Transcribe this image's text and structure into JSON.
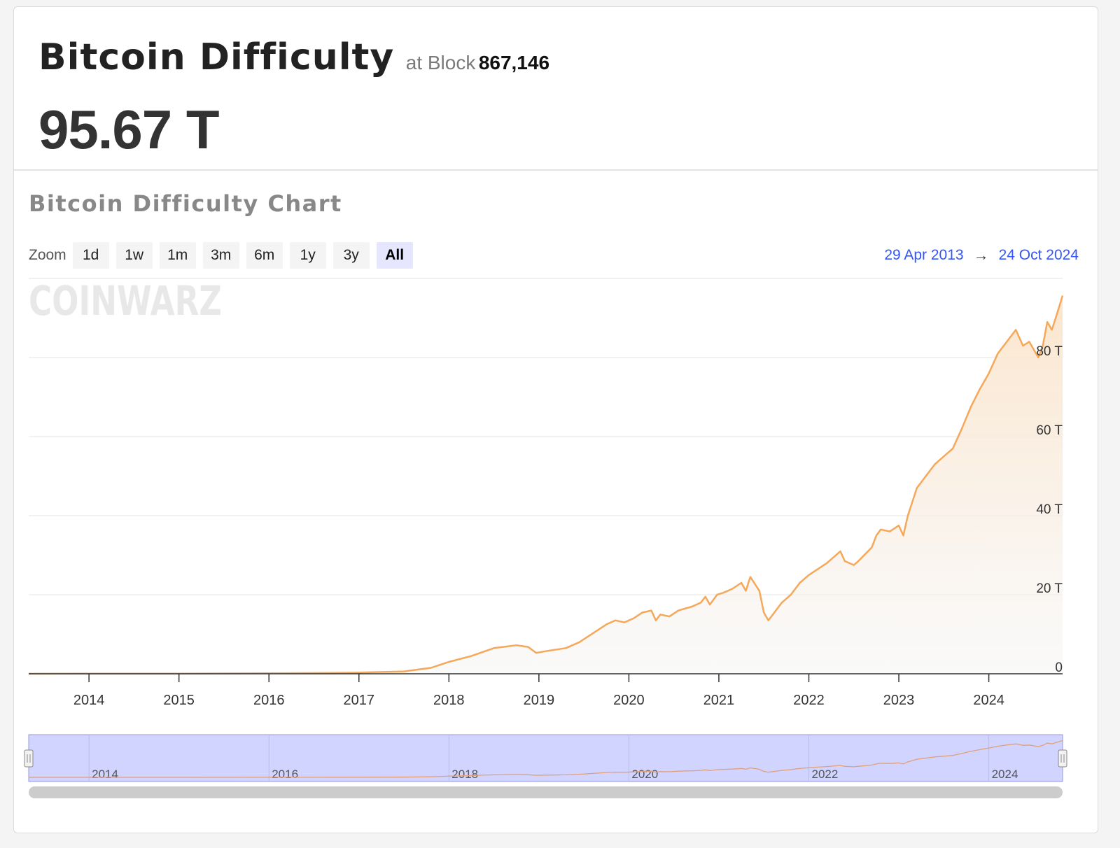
{
  "header": {
    "title": "Bitcoin Difficulty",
    "at_block_label": "at Block",
    "block_number": "867,146",
    "value": "95.67 T"
  },
  "chart_section": {
    "title": "Bitcoin Difficulty Chart",
    "zoom_label": "Zoom",
    "zoom_buttons": [
      "1d",
      "1w",
      "1m",
      "3m",
      "6m",
      "1y",
      "3y",
      "All"
    ],
    "active_zoom": "All",
    "range_from": "29 Apr 2013",
    "range_arrow": "→",
    "range_to": "24 Oct 2024",
    "watermark": "COINWARZ"
  },
  "colors": {
    "line": "#f5a85a",
    "navigator_fill": "#d0d4ff",
    "date_link": "#3355ff"
  },
  "chart_data": {
    "type": "area",
    "ylabel": "",
    "y_unit": "T",
    "ylim": [
      0,
      100
    ],
    "y_ticks": [
      "0",
      "20 T",
      "40 T",
      "60 T",
      "80 T"
    ],
    "x_range": [
      2013.33,
      2024.82
    ],
    "x_ticks": [
      "2014",
      "2015",
      "2016",
      "2017",
      "2018",
      "2019",
      "2020",
      "2021",
      "2022",
      "2023",
      "2024"
    ],
    "navigator_ticks": [
      "2014",
      "2016",
      "2018",
      "2020",
      "2022",
      "2024"
    ],
    "series": [
      {
        "x": [
          2013.33,
          2014.0,
          2015.0,
          2016.0,
          2016.5,
          2017.0,
          2017.5,
          2017.8,
          2018.0,
          2018.25,
          2018.5,
          2018.75,
          2018.88,
          2018.97,
          2019.1,
          2019.3,
          2019.45,
          2019.55,
          2019.65,
          2019.75,
          2019.85,
          2019.95,
          2020.05,
          2020.15,
          2020.25,
          2020.3,
          2020.35,
          2020.45,
          2020.55,
          2020.7,
          2020.8,
          2020.85,
          2020.9,
          2020.98,
          2021.05,
          2021.15,
          2021.25,
          2021.3,
          2021.35,
          2021.45,
          2021.5,
          2021.55,
          2021.6,
          2021.7,
          2021.8,
          2021.9,
          2022.0,
          2022.1,
          2022.2,
          2022.35,
          2022.4,
          2022.5,
          2022.55,
          2022.7,
          2022.75,
          2022.8,
          2022.9,
          2023.0,
          2023.05,
          2023.1,
          2023.2,
          2023.3,
          2023.4,
          2023.5,
          2023.6,
          2023.7,
          2023.8,
          2023.9,
          2024.0,
          2024.1,
          2024.2,
          2024.3,
          2024.38,
          2024.45,
          2024.55,
          2024.6,
          2024.65,
          2024.7,
          2024.75,
          2024.82
        ],
        "values": [
          0.01,
          0.03,
          0.05,
          0.15,
          0.2,
          0.3,
          0.6,
          1.5,
          3.0,
          4.5,
          6.5,
          7.2,
          6.8,
          5.3,
          5.8,
          6.5,
          8.0,
          9.5,
          11.0,
          12.5,
          13.5,
          13.0,
          14.0,
          15.5,
          16.0,
          13.5,
          15.0,
          14.5,
          16.0,
          17.0,
          18.0,
          19.5,
          17.5,
          20.0,
          20.5,
          21.5,
          23.0,
          21.0,
          24.5,
          21.0,
          15.5,
          13.5,
          15.0,
          18.0,
          20.0,
          23.0,
          25.0,
          26.5,
          28.0,
          31.0,
          28.5,
          27.5,
          28.5,
          32.0,
          35.0,
          36.5,
          36.0,
          37.5,
          35.0,
          40.0,
          47.0,
          50.0,
          53.0,
          55.0,
          57.0,
          62.0,
          67.5,
          72.0,
          76.0,
          81.0,
          84.0,
          87.0,
          83.0,
          84.0,
          80.0,
          83.0,
          89.0,
          87.0,
          90.5,
          95.67
        ]
      }
    ],
    "grid": true,
    "legend": "none",
    "navigator": true
  }
}
